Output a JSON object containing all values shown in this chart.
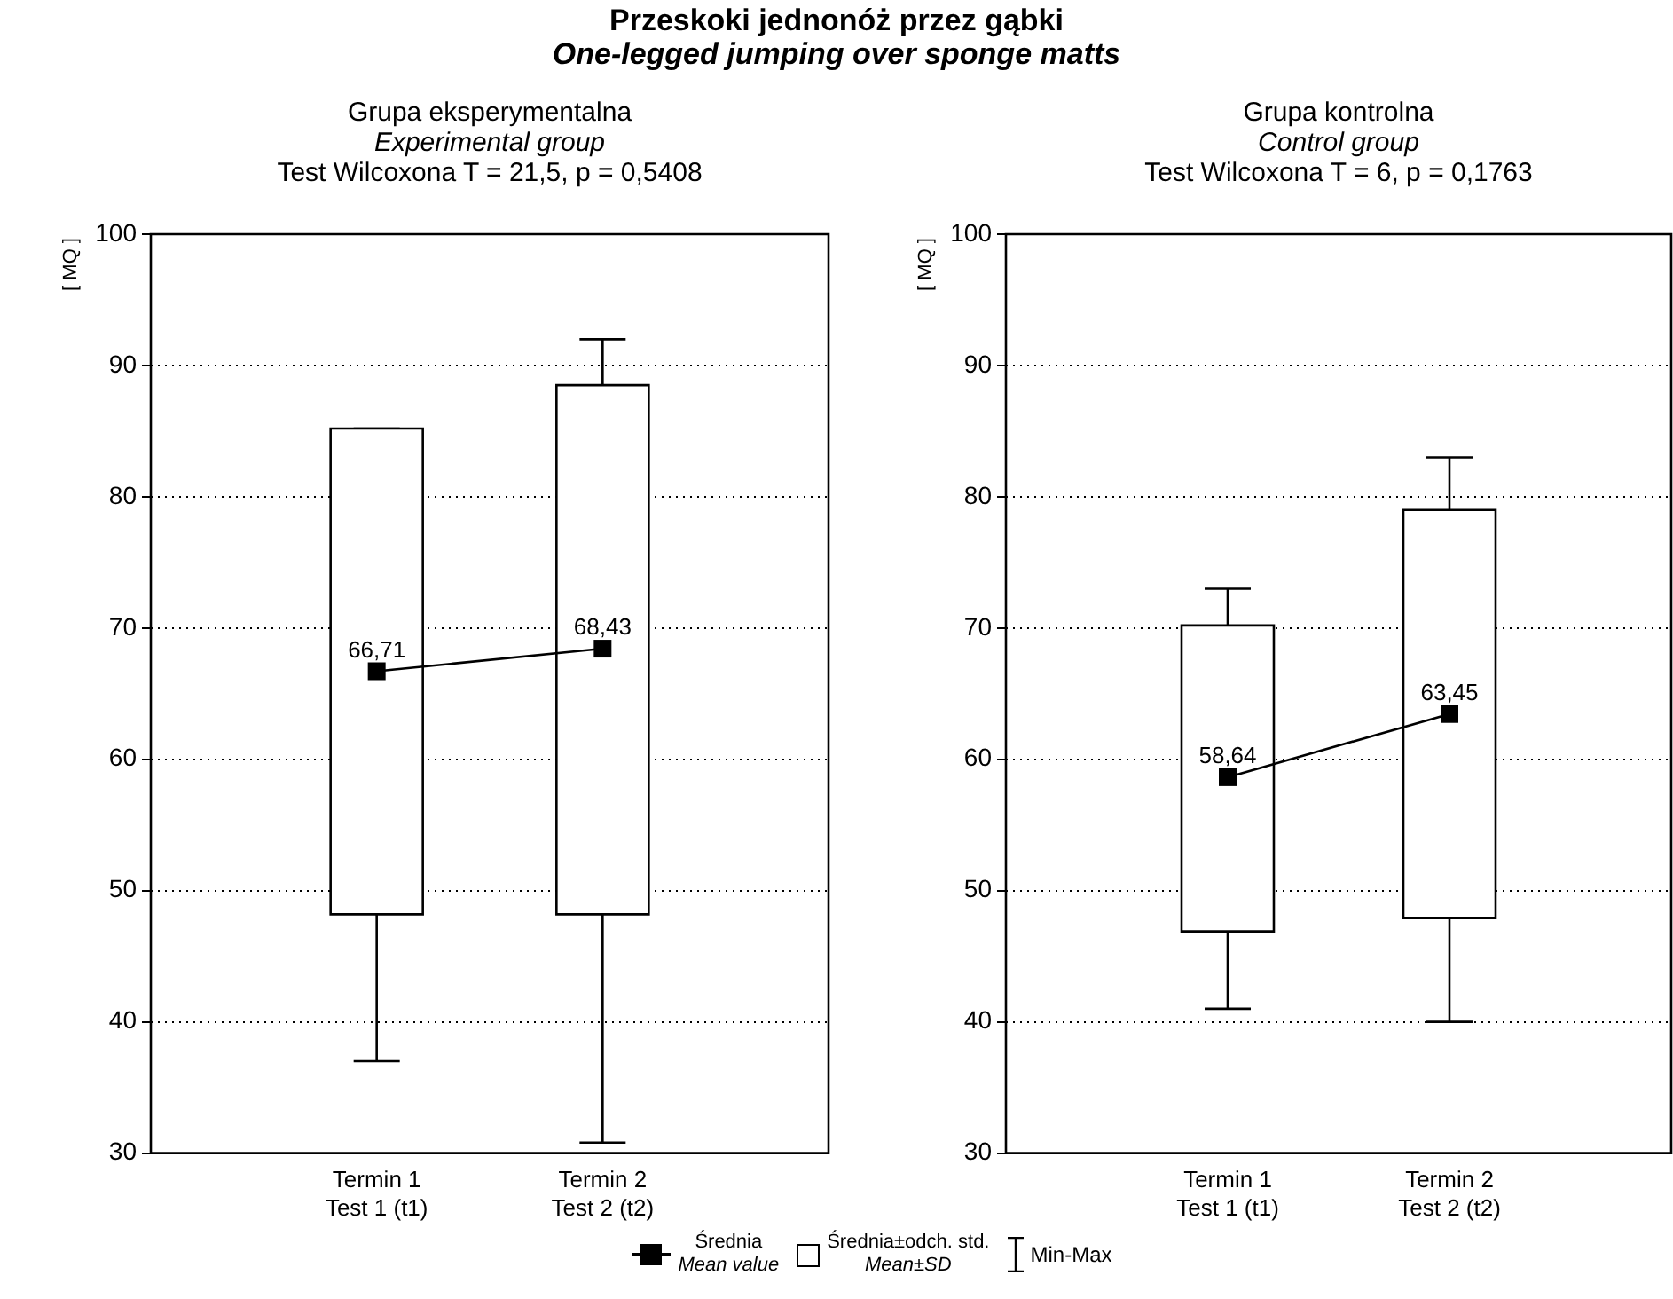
{
  "chart_data": [
    {
      "type": "other",
      "title": "Przeskoki jednonóż przez gąbki",
      "subtitle": "One-legged jumping over sponge matts"
    },
    {
      "type": "box",
      "title": "Grupa eksperymentalna",
      "subtitle": "Experimental group",
      "annotations": [
        "Test Wilcoxona T = 21,5, p = 0,5408"
      ],
      "ylabel": "[ MQ ]",
      "categories": [
        "Termin 1\nTest 1 (t1)",
        "Termin 2\nTest 2 (t2)"
      ],
      "ylim": [
        30,
        100
      ],
      "yticks": [
        30,
        40,
        50,
        60,
        70,
        80,
        90,
        100
      ],
      "grid": "y",
      "boxes": [
        {
          "low": 37,
          "q1": 48.2,
          "median": 66.71,
          "q3": 85.2,
          "high": 85.2
        },
        {
          "low": 30.8,
          "q1": 48.2,
          "median": 68.43,
          "q3": 88.5,
          "high": 92
        }
      ],
      "series": [
        {
          "type": "line",
          "color": "#000000",
          "values": [
            66.71,
            68.43
          ],
          "value_labels": [
            "66,71",
            "68,43"
          ]
        }
      ]
    },
    {
      "type": "box",
      "title": "Grupa kontrolna",
      "subtitle": "Control group",
      "annotations": [
        "Test Wilcoxona T = 6, p = 0,1763"
      ],
      "ylabel": "[ MQ ]",
      "categories": [
        "Termin 1\nTest 1 (t1)",
        "Termin 2\nTest 2 (t2)"
      ],
      "ylim": [
        30,
        100
      ],
      "yticks": [
        30,
        40,
        50,
        60,
        70,
        80,
        90,
        100
      ],
      "grid": "y",
      "boxes": [
        {
          "low": 41,
          "q1": 46.9,
          "median": 58.64,
          "q3": 70.2,
          "high": 73
        },
        {
          "low": 40,
          "q1": 47.9,
          "median": 63.45,
          "q3": 79,
          "high": 83
        }
      ],
      "series": [
        {
          "type": "line",
          "color": "#000000",
          "values": [
            58.64,
            63.45
          ],
          "value_labels": [
            "58,64",
            "63,45"
          ]
        }
      ]
    },
    {
      "type": "other",
      "annotations": [
        "Średnia",
        "Mean value",
        "Średnia±odch. std.",
        "Mean±SD",
        "Min-Max"
      ]
    }
  ]
}
